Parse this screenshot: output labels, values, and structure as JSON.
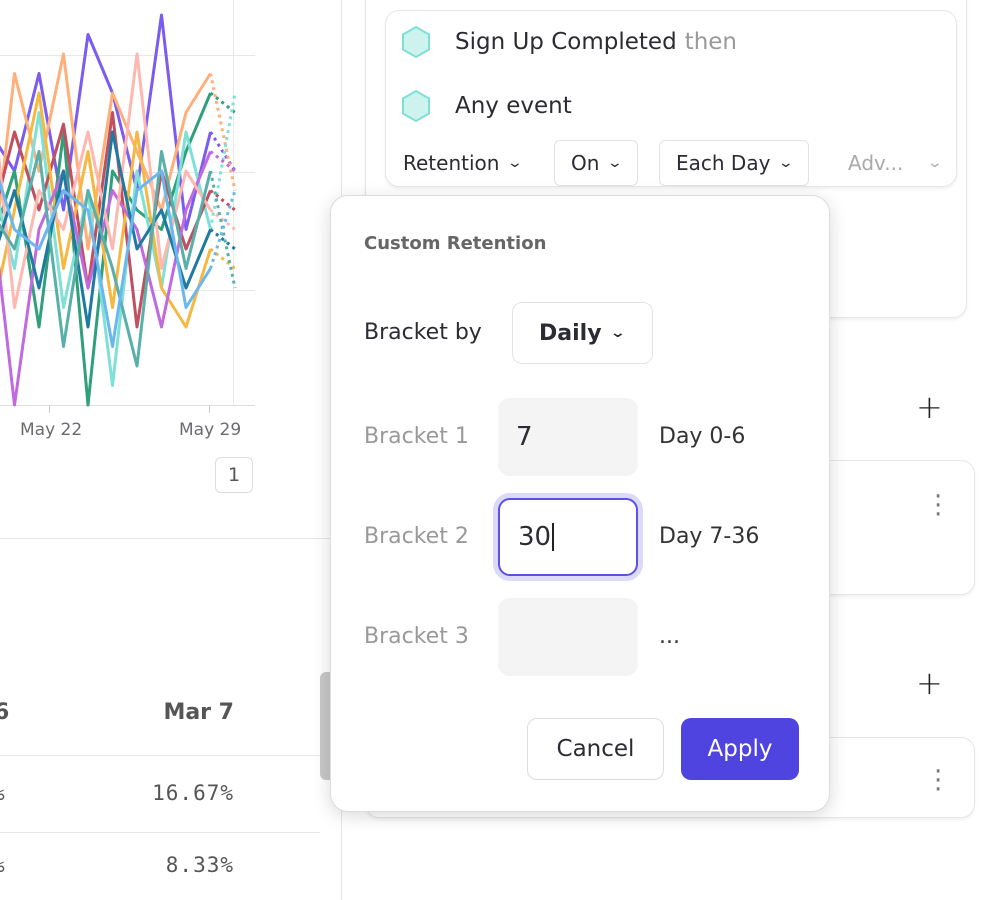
{
  "chart": {
    "x_ticks": [
      "May 22",
      "May 29"
    ],
    "page": "1",
    "series": [
      {
        "color": "#7a5cf0",
        "values": [
          0.7,
          0.6,
          0.85,
          0.5,
          0.95,
          0.8,
          0.55,
          1.0,
          0.45,
          0.7,
          0.6
        ]
      },
      {
        "color": "#ffb07a",
        "values": [
          0.3,
          0.85,
          0.6,
          0.9,
          0.4,
          0.8,
          0.65,
          0.5,
          0.75,
          0.85,
          0.55
        ]
      },
      {
        "color": "#2fa07a",
        "values": [
          0.4,
          0.6,
          0.2,
          0.7,
          0.0,
          0.6,
          0.5,
          0.45,
          0.65,
          0.8,
          0.75
        ]
      },
      {
        "color": "#7fe0d8",
        "values": [
          0.6,
          0.35,
          0.75,
          0.25,
          0.55,
          0.05,
          0.6,
          0.3,
          0.7,
          0.45,
          0.8
        ]
      },
      {
        "color": "#c05060",
        "values": [
          0.45,
          0.7,
          0.5,
          0.72,
          0.3,
          0.75,
          0.2,
          0.6,
          0.4,
          0.55,
          0.5
        ]
      },
      {
        "color": "#f5b942",
        "values": [
          0.2,
          0.5,
          0.8,
          0.35,
          0.65,
          0.25,
          0.7,
          0.3,
          0.2,
          0.4,
          0.35
        ]
      },
      {
        "color": "#c06ae0",
        "values": [
          0.55,
          0.0,
          0.45,
          0.6,
          0.3,
          0.55,
          0.45,
          0.2,
          0.5,
          0.65,
          0.6
        ]
      },
      {
        "color": "#ffb8b0",
        "values": [
          0.85,
          0.25,
          0.55,
          0.45,
          0.7,
          0.4,
          0.9,
          0.35,
          0.6,
          0.5,
          0.45
        ]
      },
      {
        "color": "#1f7aa0",
        "values": [
          0.35,
          0.55,
          0.3,
          0.6,
          0.2,
          0.7,
          0.4,
          0.5,
          0.3,
          0.45,
          0.4
        ]
      },
      {
        "color": "#58b0a8",
        "values": [
          0.5,
          0.4,
          0.65,
          0.15,
          0.55,
          0.35,
          0.1,
          0.65,
          0.35,
          0.6,
          0.3
        ]
      },
      {
        "color": "#6bb8f0",
        "values": [
          0.65,
          0.45,
          0.4,
          0.55,
          0.5,
          0.15,
          0.55,
          0.6,
          0.25,
          0.35,
          0.55
        ]
      }
    ]
  },
  "table": {
    "header_partial": "6",
    "header": "Mar 7",
    "rows": [
      {
        "partial": "%",
        "value": "16.67%"
      },
      {
        "partial": "%",
        "value": "8.33%"
      }
    ]
  },
  "query": {
    "event1": "Sign Up Completed",
    "then": "then",
    "event2": "Any event",
    "retention": "Retention",
    "on": "On",
    "each_day": "Each Day",
    "advanced": "Adv...",
    "hex_color": "#7fe0d8"
  },
  "popup": {
    "title": "Custom Retention",
    "bracket_by_label": "Bracket by",
    "bracket_by_value": "Daily",
    "brackets": [
      {
        "label": "Bracket 1",
        "value": "7",
        "range": "Day 0-6"
      },
      {
        "label": "Bracket 2",
        "value": "30",
        "range": "Day 7-36"
      },
      {
        "label": "Bracket 3",
        "value": "",
        "range": "..."
      }
    ],
    "cancel": "Cancel",
    "apply": "Apply",
    "accent": "#4f44e0"
  }
}
